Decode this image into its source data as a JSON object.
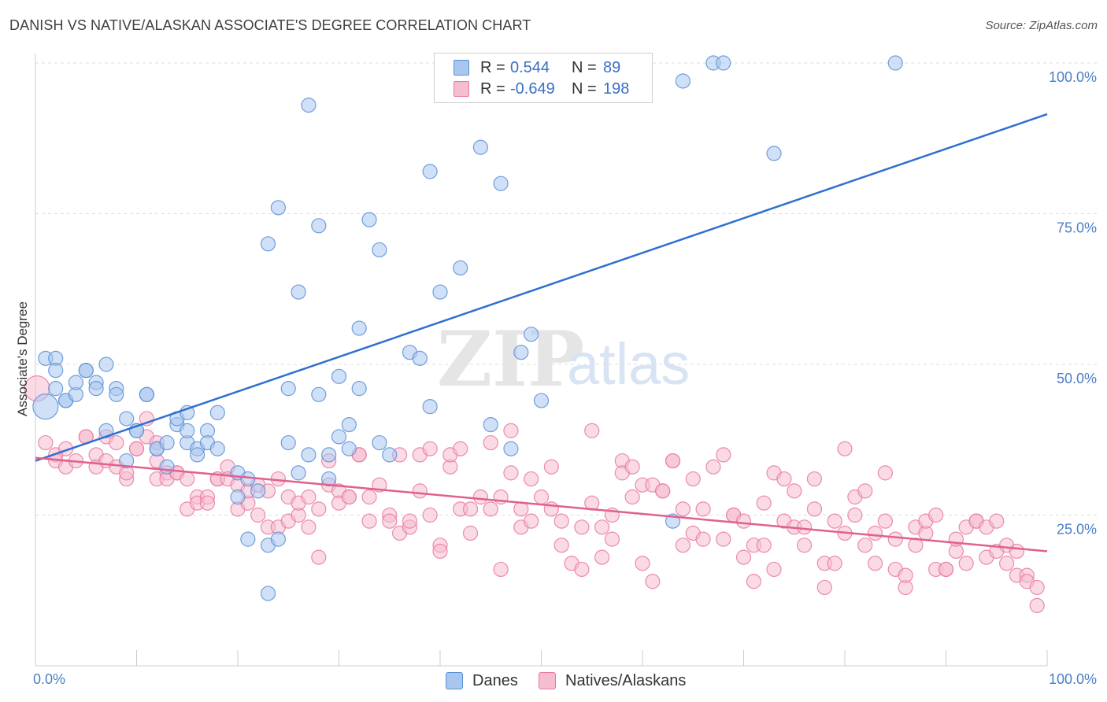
{
  "title": "DANISH VS NATIVE/ALASKAN ASSOCIATE'S DEGREE CORRELATION CHART",
  "source": "Source: ZipAtlas.com",
  "legend_top": [
    {
      "r_label": "R =",
      "r_value": "0.544",
      "n_label": "N =",
      "n_value": "89",
      "color": "#a9c6ef",
      "edge": "#5b8fd6"
    },
    {
      "r_label": "R =",
      "r_value": "-0.649",
      "n_label": "N =",
      "n_value": "198",
      "color": "#f6bcd0",
      "edge": "#e8799e"
    }
  ],
  "legend_bottom": [
    {
      "label": "Danes",
      "color": "#a9c6ef",
      "edge": "#5b8fd6"
    },
    {
      "label": "Natives/Alaskans",
      "color": "#f6bcd0",
      "edge": "#e8799e"
    }
  ],
  "chart_data": {
    "type": "scatter",
    "title": "DANISH VS NATIVE/ALASKAN ASSOCIATE'S DEGREE CORRELATION CHART",
    "xlabel": "",
    "ylabel": "Associate's Degree",
    "xlim": [
      0,
      100
    ],
    "ylim": [
      0,
      100
    ],
    "x_ticks": [
      "0.0%",
      "100.0%"
    ],
    "y_ticks": [
      {
        "value": 25,
        "label": "25.0%"
      },
      {
        "value": 50,
        "label": "50.0%"
      },
      {
        "value": 75,
        "label": "75.0%"
      },
      {
        "value": 100,
        "label": "100.0%"
      }
    ],
    "grid": true,
    "legend": "top-center",
    "watermark": "ZIPatlas",
    "series": [
      {
        "name": "Danes",
        "color": "#5b8fd6",
        "fill": "#a9c6ef",
        "trend": {
          "x": [
            0,
            100
          ],
          "y": [
            34.0,
            91.5
          ],
          "color": "#2f6fd0"
        },
        "points": [
          [
            1,
            43
          ],
          [
            1,
            51
          ],
          [
            2,
            51
          ],
          [
            2,
            49
          ],
          [
            2,
            46
          ],
          [
            3,
            44
          ],
          [
            3,
            44
          ],
          [
            4,
            45
          ],
          [
            4,
            47
          ],
          [
            5,
            49
          ],
          [
            5,
            49
          ],
          [
            6,
            47
          ],
          [
            6,
            46
          ],
          [
            7,
            50
          ],
          [
            7,
            39
          ],
          [
            8,
            46
          ],
          [
            8,
            45
          ],
          [
            9,
            41
          ],
          [
            9,
            34
          ],
          [
            10,
            39
          ],
          [
            10,
            39
          ],
          [
            11,
            45
          ],
          [
            11,
            45
          ],
          [
            12,
            36
          ],
          [
            12,
            36
          ],
          [
            13,
            37
          ],
          [
            13,
            33
          ],
          [
            14,
            40
          ],
          [
            14,
            41
          ],
          [
            15,
            37
          ],
          [
            15,
            39
          ],
          [
            15,
            42
          ],
          [
            16,
            36
          ],
          [
            16,
            35
          ],
          [
            17,
            39
          ],
          [
            17,
            37
          ],
          [
            18,
            36
          ],
          [
            18,
            42
          ],
          [
            20,
            32
          ],
          [
            20,
            28
          ],
          [
            21,
            31
          ],
          [
            21,
            21
          ],
          [
            22,
            29
          ],
          [
            23,
            20
          ],
          [
            23,
            12
          ],
          [
            23,
            70
          ],
          [
            24,
            76
          ],
          [
            24,
            21
          ],
          [
            25,
            46
          ],
          [
            25,
            37
          ],
          [
            26,
            62
          ],
          [
            26,
            32
          ],
          [
            27,
            93
          ],
          [
            27,
            35
          ],
          [
            28,
            73
          ],
          [
            28,
            45
          ],
          [
            29,
            31
          ],
          [
            29,
            35
          ],
          [
            30,
            48
          ],
          [
            30,
            38
          ],
          [
            31,
            36
          ],
          [
            31,
            40
          ],
          [
            32,
            46
          ],
          [
            32,
            56
          ],
          [
            33,
            74
          ],
          [
            34,
            37
          ],
          [
            34,
            69
          ],
          [
            35,
            35
          ],
          [
            37,
            52
          ],
          [
            38,
            51
          ],
          [
            39,
            82
          ],
          [
            39,
            43
          ],
          [
            40,
            62
          ],
          [
            42,
            66
          ],
          [
            44,
            86
          ],
          [
            45,
            40
          ],
          [
            46,
            80
          ],
          [
            47,
            36
          ],
          [
            48,
            52
          ],
          [
            49,
            55
          ],
          [
            50,
            44
          ],
          [
            63,
            24
          ],
          [
            64,
            97
          ],
          [
            67,
            100
          ],
          [
            68,
            100
          ],
          [
            73,
            85
          ],
          [
            85,
            100
          ]
        ]
      },
      {
        "name": "Natives/Alaskans",
        "color": "#e8799e",
        "fill": "#f6bcd0",
        "trend": {
          "x": [
            0,
            100
          ],
          "y": [
            34.5,
            19.0
          ],
          "color": "#e0608e"
        },
        "points": [
          [
            0,
            46
          ],
          [
            1,
            37
          ],
          [
            2,
            35
          ],
          [
            2,
            34
          ],
          [
            3,
            33
          ],
          [
            3,
            36
          ],
          [
            4,
            34
          ],
          [
            5,
            38
          ],
          [
            5,
            38
          ],
          [
            6,
            35
          ],
          [
            6,
            33
          ],
          [
            7,
            38
          ],
          [
            7,
            34
          ],
          [
            8,
            33
          ],
          [
            8,
            37
          ],
          [
            9,
            31
          ],
          [
            9,
            32
          ],
          [
            10,
            36
          ],
          [
            10,
            36
          ],
          [
            11,
            41
          ],
          [
            11,
            38
          ],
          [
            12,
            34
          ],
          [
            12,
            31
          ],
          [
            12,
            37
          ],
          [
            13,
            32
          ],
          [
            13,
            31
          ],
          [
            14,
            32
          ],
          [
            14,
            32
          ],
          [
            15,
            31
          ],
          [
            15,
            26
          ],
          [
            16,
            28
          ],
          [
            16,
            27
          ],
          [
            17,
            28
          ],
          [
            17,
            27
          ],
          [
            18,
            31
          ],
          [
            18,
            31
          ],
          [
            19,
            33
          ],
          [
            19,
            31
          ],
          [
            20,
            26
          ],
          [
            20,
            30
          ],
          [
            21,
            27
          ],
          [
            21,
            29
          ],
          [
            22,
            30
          ],
          [
            22,
            25
          ],
          [
            23,
            29
          ],
          [
            23,
            23
          ],
          [
            24,
            31
          ],
          [
            24,
            23
          ],
          [
            25,
            24
          ],
          [
            25,
            28
          ],
          [
            26,
            25
          ],
          [
            26,
            27
          ],
          [
            27,
            28
          ],
          [
            27,
            23
          ],
          [
            28,
            26
          ],
          [
            28,
            18
          ],
          [
            29,
            30
          ],
          [
            29,
            34
          ],
          [
            30,
            29
          ],
          [
            30,
            27
          ],
          [
            31,
            28
          ],
          [
            31,
            28
          ],
          [
            32,
            35
          ],
          [
            32,
            35
          ],
          [
            33,
            24
          ],
          [
            33,
            28
          ],
          [
            34,
            30
          ],
          [
            35,
            25
          ],
          [
            35,
            24
          ],
          [
            36,
            22
          ],
          [
            36,
            35
          ],
          [
            37,
            23
          ],
          [
            37,
            24
          ],
          [
            38,
            29
          ],
          [
            38,
            35
          ],
          [
            39,
            25
          ],
          [
            39,
            36
          ],
          [
            40,
            20
          ],
          [
            40,
            19
          ],
          [
            41,
            33
          ],
          [
            41,
            35
          ],
          [
            42,
            26
          ],
          [
            42,
            36
          ],
          [
            43,
            22
          ],
          [
            43,
            26
          ],
          [
            44,
            28
          ],
          [
            45,
            26
          ],
          [
            45,
            37
          ],
          [
            46,
            28
          ],
          [
            46,
            16
          ],
          [
            47,
            39
          ],
          [
            47,
            32
          ],
          [
            48,
            23
          ],
          [
            48,
            26
          ],
          [
            49,
            24
          ],
          [
            49,
            31
          ],
          [
            50,
            28
          ],
          [
            51,
            33
          ],
          [
            51,
            26
          ],
          [
            52,
            24
          ],
          [
            52,
            20
          ],
          [
            53,
            17
          ],
          [
            54,
            23
          ],
          [
            54,
            16
          ],
          [
            55,
            27
          ],
          [
            55,
            39
          ],
          [
            56,
            18
          ],
          [
            56,
            23
          ],
          [
            57,
            21
          ],
          [
            57,
            25
          ],
          [
            58,
            34
          ],
          [
            58,
            32
          ],
          [
            59,
            28
          ],
          [
            59,
            33
          ],
          [
            60,
            17
          ],
          [
            60,
            30
          ],
          [
            61,
            30
          ],
          [
            61,
            14
          ],
          [
            62,
            29
          ],
          [
            62,
            29
          ],
          [
            63,
            34
          ],
          [
            63,
            34
          ],
          [
            64,
            20
          ],
          [
            64,
            26
          ],
          [
            65,
            22
          ],
          [
            65,
            31
          ],
          [
            66,
            21
          ],
          [
            66,
            26
          ],
          [
            67,
            33
          ],
          [
            68,
            21
          ],
          [
            68,
            35
          ],
          [
            69,
            25
          ],
          [
            69,
            25
          ],
          [
            70,
            18
          ],
          [
            70,
            24
          ],
          [
            71,
            14
          ],
          [
            71,
            20
          ],
          [
            72,
            27
          ],
          [
            72,
            20
          ],
          [
            73,
            16
          ],
          [
            73,
            32
          ],
          [
            74,
            31
          ],
          [
            74,
            24
          ],
          [
            75,
            29
          ],
          [
            75,
            23
          ],
          [
            76,
            23
          ],
          [
            76,
            20
          ],
          [
            77,
            26
          ],
          [
            77,
            31
          ],
          [
            78,
            17
          ],
          [
            78,
            13
          ],
          [
            79,
            24
          ],
          [
            79,
            17
          ],
          [
            80,
            22
          ],
          [
            80,
            36
          ],
          [
            81,
            28
          ],
          [
            81,
            25
          ],
          [
            82,
            20
          ],
          [
            82,
            29
          ],
          [
            83,
            17
          ],
          [
            83,
            22
          ],
          [
            84,
            24
          ],
          [
            84,
            32
          ],
          [
            85,
            16
          ],
          [
            85,
            21
          ],
          [
            86,
            13
          ],
          [
            86,
            15
          ],
          [
            87,
            20
          ],
          [
            87,
            23
          ],
          [
            88,
            22
          ],
          [
            88,
            24
          ],
          [
            89,
            16
          ],
          [
            89,
            25
          ],
          [
            90,
            16
          ],
          [
            90,
            16
          ],
          [
            91,
            19
          ],
          [
            91,
            21
          ],
          [
            92,
            23
          ],
          [
            92,
            17
          ],
          [
            93,
            24
          ],
          [
            93,
            24
          ],
          [
            94,
            18
          ],
          [
            94,
            23
          ],
          [
            95,
            19
          ],
          [
            95,
            24
          ],
          [
            96,
            20
          ],
          [
            96,
            17
          ],
          [
            97,
            15
          ],
          [
            97,
            19
          ],
          [
            98,
            15
          ],
          [
            98,
            14
          ],
          [
            99,
            10
          ],
          [
            99,
            13
          ]
        ]
      }
    ]
  }
}
